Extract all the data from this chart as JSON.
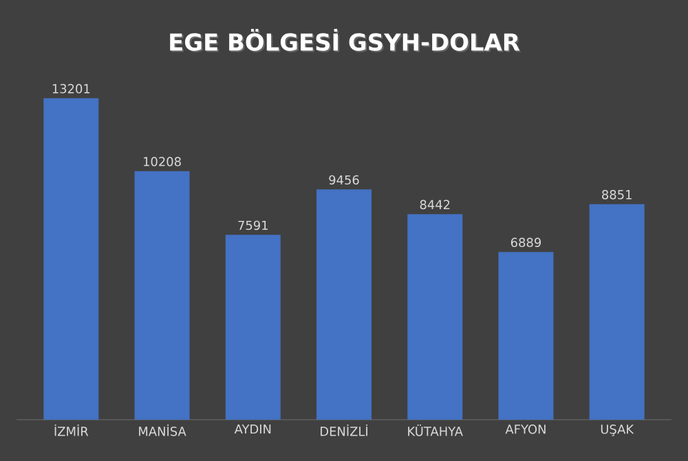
{
  "chart_data": {
    "type": "bar",
    "title": "EGE BÖLGESİ GSYH-DOLAR",
    "categories": [
      "İZMİR",
      "MANİSA",
      "AYDIN",
      "DENİZLİ",
      "KÜTAHYA",
      "AFYON",
      "UŞAK"
    ],
    "values": [
      13201,
      10208,
      7591,
      9456,
      8442,
      6889,
      8851
    ],
    "color": "#4472c4",
    "data_labels": true
  }
}
